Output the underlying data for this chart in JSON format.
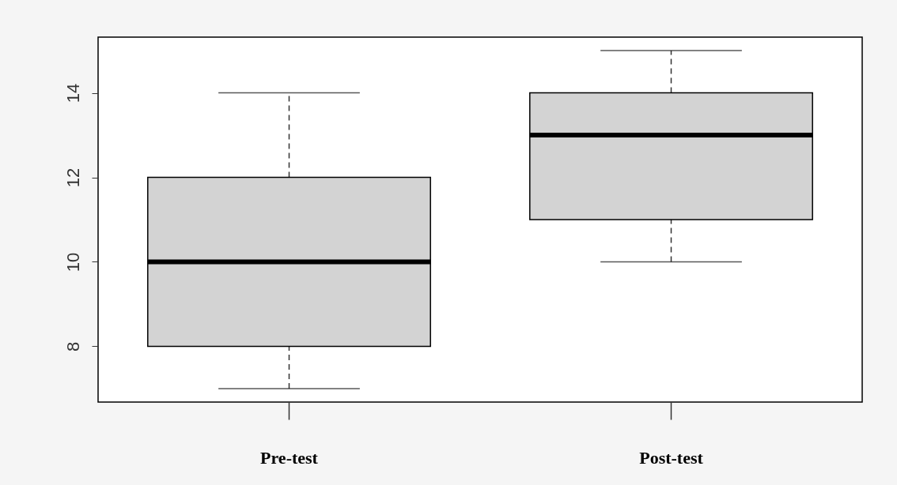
{
  "chart_data": {
    "type": "box",
    "categories": [
      "Pre-test",
      "Post-test"
    ],
    "boxes": [
      {
        "low": 7,
        "q1": 8,
        "median": 10,
        "q3": 12,
        "high": 14
      },
      {
        "low": 10,
        "q1": 11,
        "median": 13,
        "q3": 14,
        "high": 15
      }
    ],
    "colors": [
      "#d3d3d3",
      "#d3d3d3"
    ],
    "ylim": [
      6.68,
      15.32
    ],
    "yticks": [
      8,
      10,
      12,
      14
    ],
    "grid": false
  }
}
